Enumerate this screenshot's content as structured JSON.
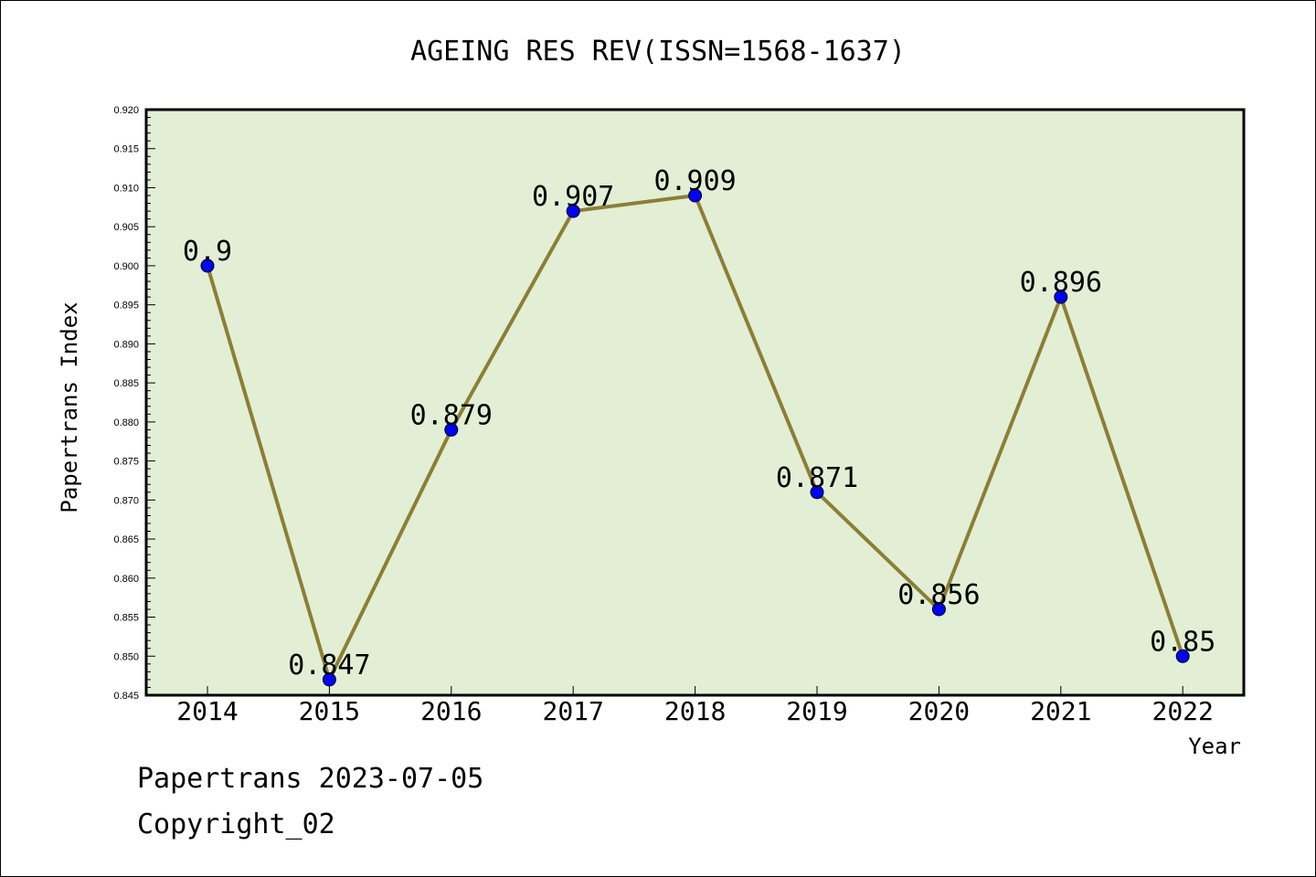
{
  "chart_data": {
    "type": "line",
    "title": "AGEING RES REV(ISSN=1568-1637)",
    "xlabel": "Year",
    "ylabel": "Papertrans Index",
    "categories": [
      "2014",
      "2015",
      "2016",
      "2017",
      "2018",
      "2019",
      "2020",
      "2021",
      "2022"
    ],
    "series": [
      {
        "values": [
          0.9,
          0.847,
          0.879,
          0.907,
          0.909,
          0.871,
          0.856,
          0.896,
          0.85
        ],
        "labels": [
          "0.9",
          "0.847",
          "0.879",
          "0.907",
          "0.909",
          "0.871",
          "0.856",
          "0.896",
          "0.85"
        ]
      }
    ],
    "ylim": [
      0.845,
      0.92
    ],
    "yticks": [
      "0.845",
      "0.850",
      "0.855",
      "0.860",
      "0.865",
      "0.870",
      "0.875",
      "0.880",
      "0.885",
      "0.890",
      "0.895",
      "0.900",
      "0.905",
      "0.910",
      "0.915",
      "0.920"
    ],
    "grid": false,
    "colors": {
      "plot_background": "#e2efd5",
      "line": "#8b7f35",
      "marker": "#0000ff"
    }
  },
  "footer": {
    "date_line": "Papertrans 2023-07-05",
    "copyright_line": "Copyright_02"
  }
}
